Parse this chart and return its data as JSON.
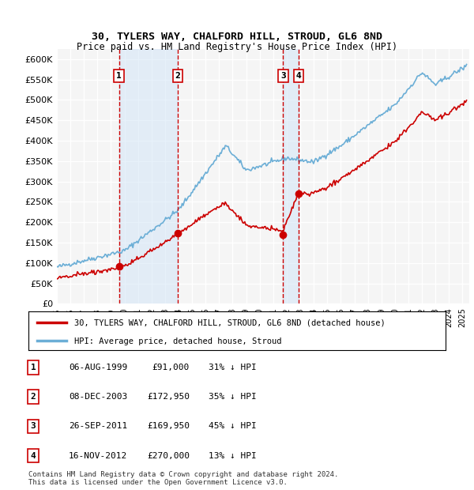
{
  "title": "30, TYLERS WAY, CHALFORD HILL, STROUD, GL6 8ND",
  "subtitle": "Price paid vs. HM Land Registry's House Price Index (HPI)",
  "ylabel": "",
  "ylim": [
    0,
    625000
  ],
  "yticks": [
    0,
    50000,
    100000,
    150000,
    200000,
    250000,
    300000,
    350000,
    400000,
    450000,
    500000,
    550000,
    600000
  ],
  "ytick_labels": [
    "£0",
    "£50K",
    "£100K",
    "£150K",
    "£200K",
    "£250K",
    "£300K",
    "£350K",
    "£400K",
    "£450K",
    "£500K",
    "£550K",
    "£600K"
  ],
  "hpi_color": "#6baed6",
  "price_color": "#cc0000",
  "sale_dot_color": "#cc0000",
  "background_color": "#ffffff",
  "plot_bg_color": "#f5f5f5",
  "grid_color": "#ffffff",
  "transactions": [
    {
      "num": 1,
      "date": "06-AUG-1999",
      "price": 91000,
      "pct": "31%",
      "x_year": 1999.6
    },
    {
      "num": 2,
      "date": "08-DEC-2003",
      "price": 172950,
      "pct": "35%",
      "x_year": 2003.93
    },
    {
      "num": 3,
      "date": "26-SEP-2011",
      "price": 169950,
      "pct": "45%",
      "x_year": 2011.73
    },
    {
      "num": 4,
      "date": "16-NOV-2012",
      "price": 270000,
      "pct": "13%",
      "x_year": 2012.87
    }
  ],
  "legend_house_label": "30, TYLERS WAY, CHALFORD HILL, STROUD, GL6 8ND (detached house)",
  "legend_hpi_label": "HPI: Average price, detached house, Stroud",
  "footnote": "Contains HM Land Registry data © Crown copyright and database right 2024.\nThis data is licensed under the Open Government Licence v3.0.",
  "table_rows": [
    {
      "num": 1,
      "date": "06-AUG-1999",
      "price": "£91,000",
      "pct": "31% ↓ HPI"
    },
    {
      "num": 2,
      "date": "08-DEC-2003",
      "price": "£172,950",
      "pct": "35% ↓ HPI"
    },
    {
      "num": 3,
      "date": "26-SEP-2011",
      "price": "£169,950",
      "pct": "45% ↓ HPI"
    },
    {
      "num": 4,
      "date": "16-NOV-2012",
      "price": "£270,000",
      "pct": "13% ↓ HPI"
    }
  ],
  "xmin": 1995,
  "xmax": 2025.5
}
